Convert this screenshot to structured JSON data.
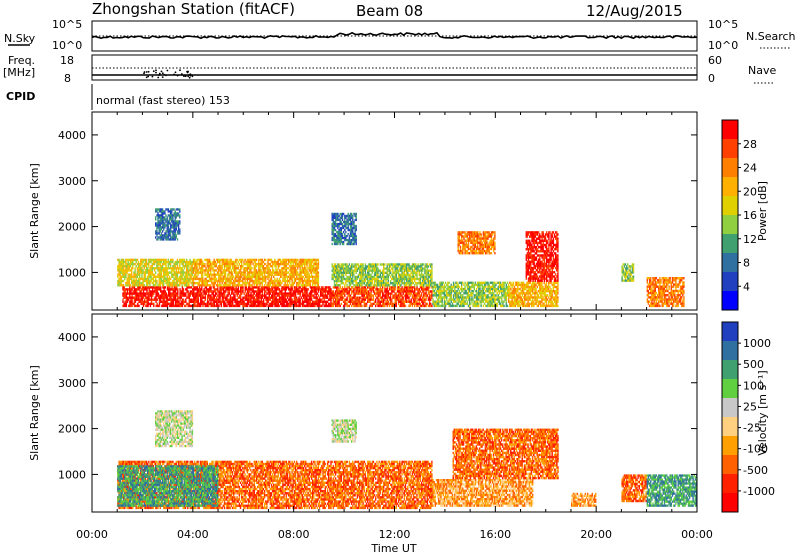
{
  "header": {
    "station": "Zhongshan Station (fitACF)",
    "beam": "Beam 08",
    "date": "12/Aug/2015"
  },
  "strips": {
    "nsky_label": "N.Sky",
    "nsky_ticks": [
      "10^5",
      "10^0"
    ],
    "nsearch_label": "N.Search",
    "nsearch_ticks": [
      "10^5",
      "10^0"
    ],
    "freq_label_1": "Freq.",
    "freq_label_2": "[MHz]",
    "freq_ticks": [
      "18",
      "8"
    ],
    "nave_label": "Nave",
    "nave_ticks": [
      "60",
      "0"
    ],
    "cpid_label": "CPID",
    "cpid_value": "normal (fast stereo) 153"
  },
  "chart_data": [
    {
      "type": "heatmap",
      "parameter": "power",
      "ylabel": "Slant Range [km]",
      "y_ticks": [
        "4000",
        "3000",
        "2000",
        "1000"
      ],
      "y_values": [
        4000,
        3000,
        2000,
        1000
      ],
      "ylim": [
        180,
        4500
      ],
      "xlim": [
        0,
        24
      ],
      "colorbar_label": "Power [dB]",
      "colorbar_ticks": [
        "28",
        "24",
        "20",
        "16",
        "12",
        "8",
        "4"
      ],
      "colorbar_colors": [
        "#ff0000",
        "#ff4000",
        "#ff8000",
        "#ffb000",
        "#e0d000",
        "#90d040",
        "#40a070",
        "#3070a0",
        "#2040c0",
        "#0000ff"
      ],
      "regions": [
        {
          "x0": 1.2,
          "x1": 9.5,
          "r0": 250,
          "r1": 700,
          "level": 0
        },
        {
          "x0": 1.0,
          "x1": 4.0,
          "r0": 700,
          "r1": 1300,
          "level": 4
        },
        {
          "x0": 4.0,
          "x1": 9.0,
          "r0": 700,
          "r1": 1300,
          "level": 3
        },
        {
          "x0": 9.5,
          "x1": 13.5,
          "r0": 250,
          "r1": 700,
          "level": 1
        },
        {
          "x0": 9.5,
          "x1": 13.5,
          "r0": 700,
          "r1": 1200,
          "level": 5
        },
        {
          "x0": 13.5,
          "x1": 16.5,
          "r0": 250,
          "r1": 800,
          "level": 5
        },
        {
          "x0": 16.5,
          "x1": 18.5,
          "r0": 250,
          "r1": 800,
          "level": 3
        },
        {
          "x0": 17.2,
          "x1": 18.5,
          "r0": 800,
          "r1": 1900,
          "level": 0
        },
        {
          "x0": 14.5,
          "x1": 16.0,
          "r0": 1400,
          "r1": 1900,
          "level": 2
        },
        {
          "x0": 2.5,
          "x1": 3.5,
          "r0": 1700,
          "r1": 2400,
          "level": 7
        },
        {
          "x0": 9.5,
          "x1": 10.5,
          "r0": 1600,
          "r1": 2300,
          "level": 7
        },
        {
          "x0": 21.0,
          "x1": 21.5,
          "r0": 800,
          "r1": 1200,
          "level": 5
        },
        {
          "x0": 22.0,
          "x1": 23.5,
          "r0": 250,
          "r1": 900,
          "level": 2
        }
      ]
    },
    {
      "type": "heatmap",
      "parameter": "velocity",
      "ylabel": "Slant Range [km]",
      "y_ticks": [
        "4000",
        "3000",
        "2000",
        "1000"
      ],
      "y_values": [
        4000,
        3000,
        2000,
        1000
      ],
      "ylim": [
        180,
        4500
      ],
      "xlim": [
        0,
        24
      ],
      "colorbar_label": "Velocity [m s⁻¹]",
      "colorbar_ticks": [
        "1000",
        "500",
        "100",
        "25",
        "-25",
        "-100",
        "-500",
        "-1000"
      ],
      "colorbar_colors": [
        "#2040c0",
        "#3070a0",
        "#40a070",
        "#60d040",
        "#c8c8c8",
        "#ffd080",
        "#ffa000",
        "#ff6000",
        "#ff2000",
        "#ff0000"
      ],
      "regions": [
        {
          "x0": 1.0,
          "x1": 13.5,
          "r0": 250,
          "r1": 1300,
          "level": 7
        },
        {
          "x0": 1.0,
          "x1": 5.0,
          "r0": 300,
          "r1": 1200,
          "level": 2
        },
        {
          "x0": 2.5,
          "x1": 4.0,
          "r0": 1600,
          "r1": 2400,
          "level": 4
        },
        {
          "x0": 9.5,
          "x1": 10.5,
          "r0": 1700,
          "r1": 2200,
          "level": 4
        },
        {
          "x0": 13.5,
          "x1": 17.5,
          "r0": 300,
          "r1": 900,
          "level": 6
        },
        {
          "x0": 14.3,
          "x1": 18.5,
          "r0": 900,
          "r1": 2000,
          "level": 7
        },
        {
          "x0": 19.0,
          "x1": 20.0,
          "r0": 300,
          "r1": 600,
          "level": 6
        },
        {
          "x0": 21.0,
          "x1": 22.0,
          "r0": 400,
          "r1": 1000,
          "level": 7
        },
        {
          "x0": 22.0,
          "x1": 24.0,
          "r0": 300,
          "r1": 1000,
          "level": 2
        }
      ]
    }
  ],
  "x_axis": {
    "label": "Time UT",
    "ticks": [
      "00:00",
      "04:00",
      "08:00",
      "12:00",
      "16:00",
      "20:00",
      "00:00"
    ]
  }
}
